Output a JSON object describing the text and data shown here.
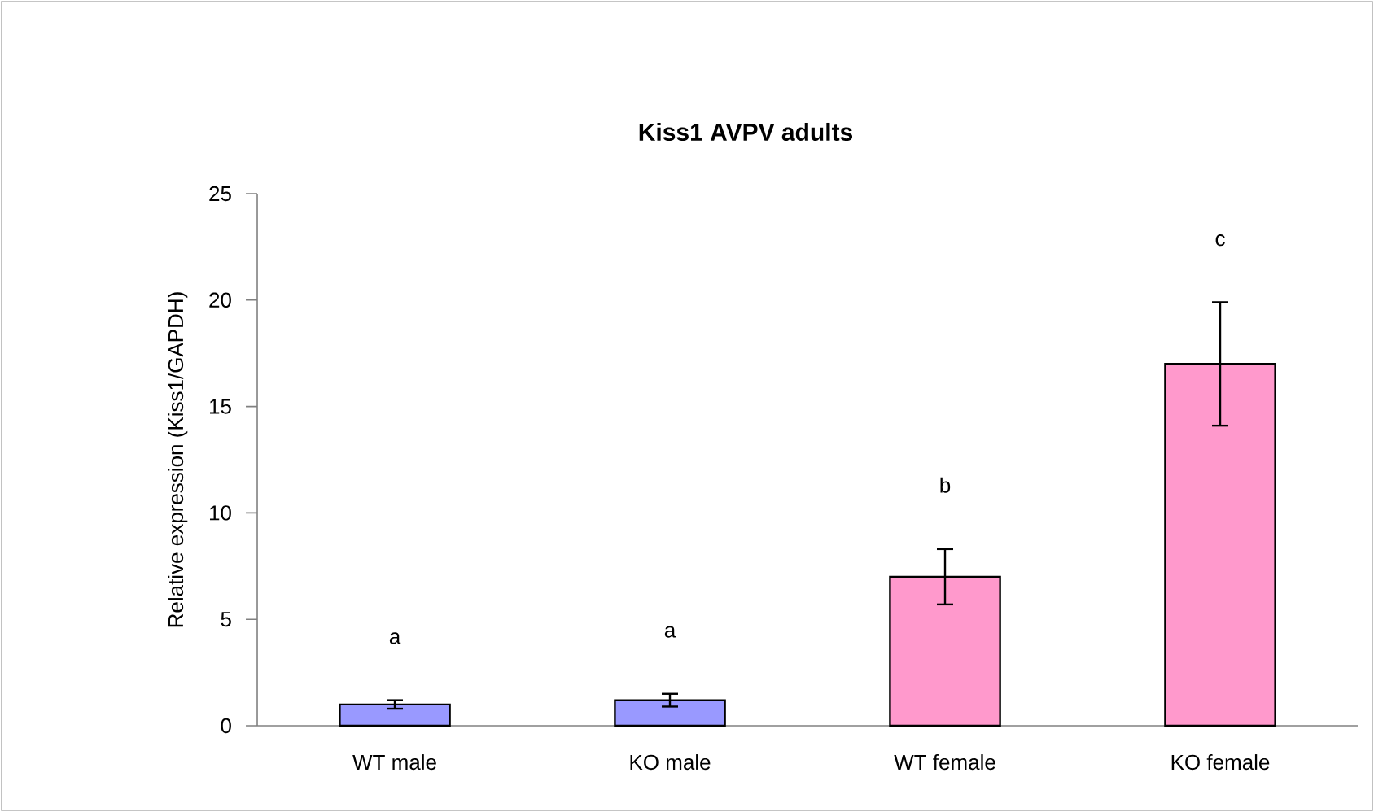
{
  "chart_data": {
    "type": "bar",
    "title": "Kiss1 AVPV adults",
    "ylabel": "Relative expression (Kiss1/GAPDH)",
    "categories": [
      "WT male",
      "KO male",
      "WT female",
      "KO female"
    ],
    "values": [
      1.0,
      1.2,
      7.0,
      17.0
    ],
    "errors": [
      0.2,
      0.3,
      1.3,
      2.9
    ],
    "colors": [
      "#9999ff",
      "#9999ff",
      "#ff99cc",
      "#ff99cc"
    ],
    "ylim": [
      0,
      25
    ],
    "yticks": [
      0,
      5,
      10,
      15,
      20,
      25
    ],
    "grid": false,
    "annotations": [
      "a",
      "a",
      "b",
      "c"
    ]
  }
}
